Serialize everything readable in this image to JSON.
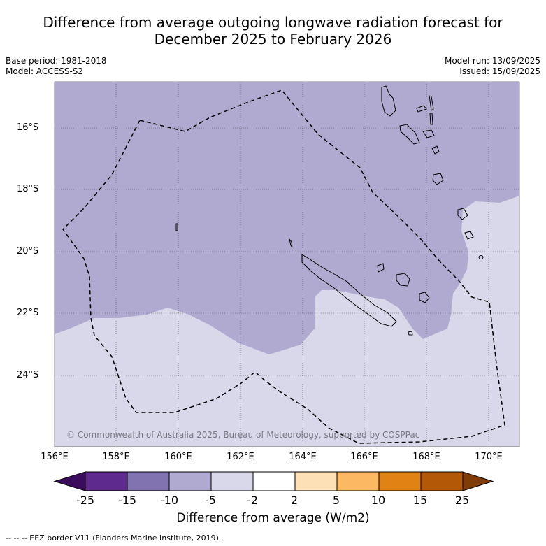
{
  "title": {
    "line1": "Difference from average outgoing longwave radiation forecast for",
    "line2": "December 2025 to February 2026"
  },
  "meta": {
    "base_period": "Base period: 1981-2018",
    "model": "Model: ACCESS-S2",
    "model_run": "Model run: 13/09/2025",
    "issued": "Issued: 15/09/2025"
  },
  "map": {
    "lat_labels": [
      "16°S",
      "18°S",
      "20°S",
      "22°S",
      "24°S"
    ],
    "lon_labels": [
      "156°E",
      "158°E",
      "160°E",
      "162°E",
      "164°E",
      "166°E",
      "168°E",
      "170°E"
    ],
    "copyright": "© Commonwealth of Australia 2025, Bureau of Meteorology, supported by COSPPac",
    "colors": {
      "anomaly_-15_-5": "#b0a9d0",
      "anomaly_-5_-2": "#d8d8ea"
    }
  },
  "colorbar": {
    "title": "Difference from average (W/m2)",
    "tick_labels": [
      "-25",
      "-15",
      "-10",
      "-5",
      "-2",
      "2",
      "5",
      "10",
      "15",
      "25"
    ],
    "colors": [
      "#3b0c5c",
      "#5e2a8c",
      "#8073b0",
      "#b0a9d0",
      "#d8d8ea",
      "#ffffff",
      "#fee0b6",
      "#fdb863",
      "#e08214",
      "#b35806",
      "#7f3b08"
    ]
  },
  "legend": {
    "eez": "--  --  -- EEZ border V11 (Flanders Marine Institute, 2019)."
  }
}
